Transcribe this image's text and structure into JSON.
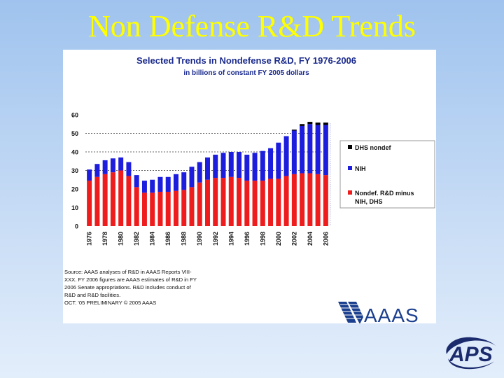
{
  "slide": {
    "title": "Non Defense R&D Trends"
  },
  "chart_data": {
    "type": "bar",
    "stacked": true,
    "title": "Selected Trends in Nondefense R&D, FY 1976-2006",
    "subtitle": "in billions of constant FY 2005 dollars",
    "xlabel": "",
    "ylabel": "",
    "ylim": [
      0,
      60
    ],
    "yticks": [
      0,
      10,
      20,
      30,
      40,
      50,
      60
    ],
    "grid": "dashed horizontal at 30, 40 and 50",
    "categories": [
      "1976",
      "1977",
      "1978",
      "1979",
      "1980",
      "1981",
      "1982",
      "1983",
      "1984",
      "1985",
      "1986",
      "1987",
      "1988",
      "1989",
      "1990",
      "1991",
      "1992",
      "1993",
      "1994",
      "1995",
      "1996",
      "1997",
      "1998",
      "1999",
      "2000",
      "2001",
      "2002",
      "2003",
      "2004",
      "2005",
      "2006"
    ],
    "xtick_labels": [
      "1976",
      "1978",
      "1980",
      "1982",
      "1984",
      "1986",
      "1988",
      "1990",
      "1992",
      "1994",
      "1996",
      "1998",
      "2000",
      "2002",
      "2004",
      "2006"
    ],
    "series": [
      {
        "name": "Nondef. R&D minus NIH, DHS",
        "color": "#ee1c1c",
        "values": [
          24.5,
          26.5,
          28,
          29,
          30,
          27,
          21,
          18,
          18,
          18.5,
          18.5,
          19,
          19.5,
          21,
          23.5,
          25,
          26,
          26,
          26.5,
          26,
          24.5,
          24.5,
          24.5,
          25.5,
          25.5,
          27,
          28,
          28.5,
          28.5,
          28,
          27.5
        ]
      },
      {
        "name": "NIH",
        "color": "#1d1ddd",
        "values": [
          6,
          7,
          7.5,
          7.5,
          7,
          7.5,
          6.5,
          6.5,
          7,
          8,
          8,
          9,
          9.5,
          11,
          11,
          12,
          12.5,
          13.5,
          13.5,
          14,
          14,
          15,
          16,
          16.5,
          19.5,
          21.5,
          23.5,
          25.5,
          26.5,
          26.5,
          27
        ]
      },
      {
        "name": "DHS nondef",
        "color": "#000000",
        "values": [
          0,
          0,
          0,
          0,
          0,
          0,
          0,
          0,
          0,
          0,
          0,
          0,
          0,
          0,
          0,
          0,
          0,
          0,
          0,
          0,
          0,
          0,
          0,
          0,
          0,
          0,
          0.5,
          1,
          1.2,
          1.3,
          1.3
        ]
      }
    ],
    "last_bar_note": "2006 bar drawn with hatched pattern (estimate)",
    "legend": {
      "placement": "right",
      "entries": [
        "DHS nondef",
        "NIH",
        "Nondef. R&D minus NIH, DHS"
      ]
    },
    "source_note_lines": [
      "Source: AAAS analyses of R&D in AAAS Reports VIII-",
      "XXX. FY 2006 figures are AAAS estimates of R&D in FY",
      "2006 Senate appropriations. R&D includes conduct of",
      "R&D and R&D facilities.",
      "OCT. '05 PRELIMINARY © 2005 AAAS"
    ]
  },
  "logos": {
    "aaas_text": "AAAS",
    "aps_text": "APS"
  },
  "colors": {
    "title": "#ffff00",
    "chart_title": "#1a2a8c",
    "nondef": "#ee1c1c",
    "nih": "#1d1ddd",
    "dhs": "#000000",
    "aaas_red": "#c8202e",
    "aaas_blue": "#1b3f8f",
    "aps": "#1a2a6c"
  }
}
